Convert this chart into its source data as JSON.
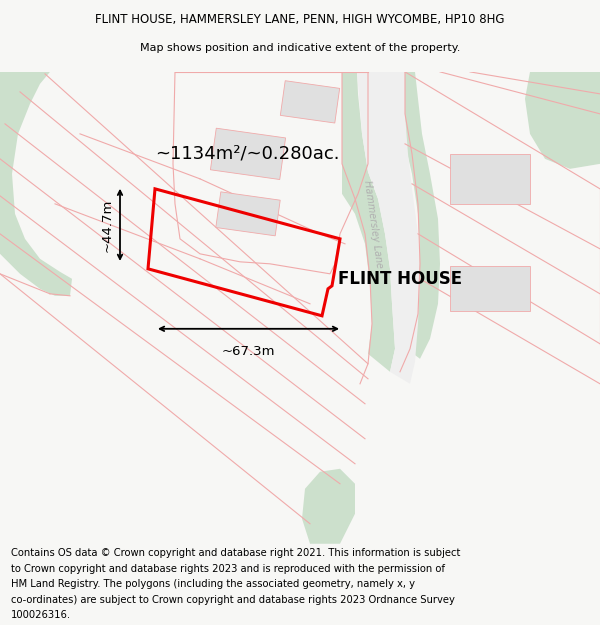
{
  "title_line1": "FLINT HOUSE, HAMMERSLEY LANE, PENN, HIGH WYCOMBE, HP10 8HG",
  "title_line2": "Map shows position and indicative extent of the property.",
  "area_label": "~1134m²/~0.280ac.",
  "width_label": "~67.3m",
  "height_label": "~44.7m",
  "property_label": "FLINT HOUSE",
  "road_label": "Hammersley Lane",
  "footer_text": "Contains OS data © Crown copyright and database right 2021. This information is subject to Crown copyright and database rights 2023 and is reproduced with the permission of HM Land Registry. The polygons (including the associated geometry, namely x, y co-ordinates) are subject to Crown copyright and database rights 2023 Ordnance Survey 100026316.",
  "bg_color": "#f7f7f5",
  "map_bg": "#ffffff",
  "plot_color": "#ee0000",
  "light_green": "#cce0cc",
  "pink_line": "#f0aaaa",
  "gray_fill": "#e0e0e0",
  "road_gray": "#d8d8d8",
  "title_fontsize": 8.5,
  "subtitle_fontsize": 8.0,
  "footer_fontsize": 7.2
}
